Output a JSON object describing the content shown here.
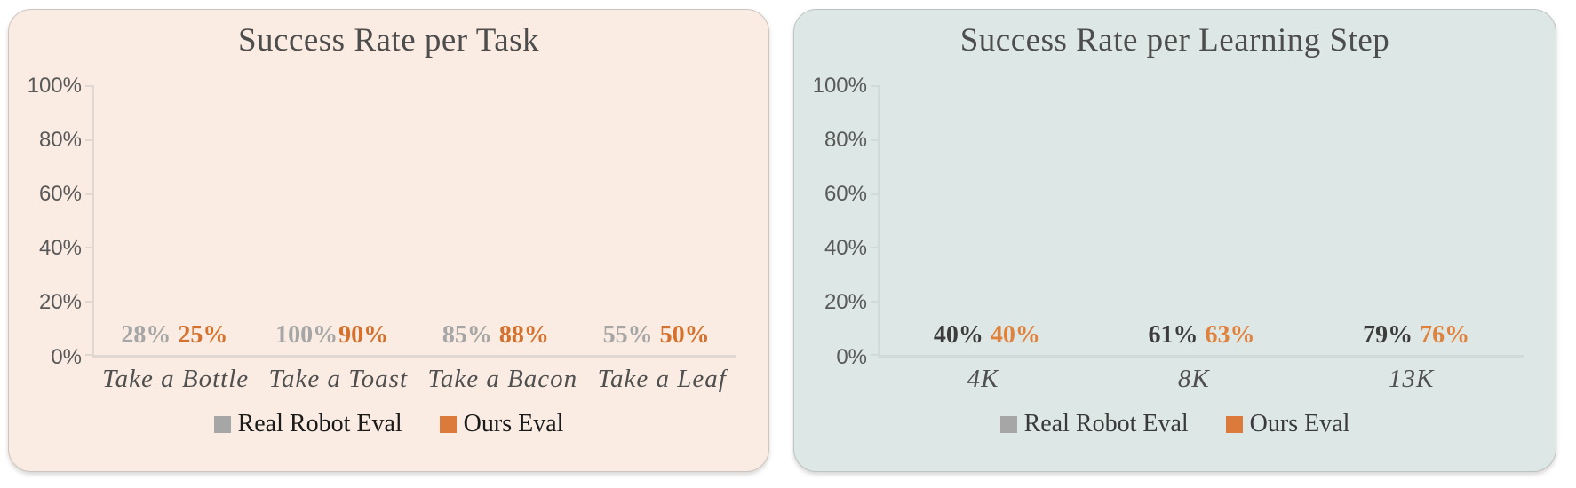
{
  "page": {
    "background": "#ffffff"
  },
  "chart_data": [
    {
      "type": "bar",
      "title": "Success Rate per Task",
      "categories": [
        "Take a Bottle",
        "Take a Toast",
        "Take a Bacon",
        "Take a Leaf"
      ],
      "series": [
        {
          "name": "Real Robot Eval",
          "color": "#a6a6a6",
          "label_color": "#a6a6a6",
          "values": [
            28,
            100,
            85,
            55
          ]
        },
        {
          "name": "Ours Eval",
          "color": "#dc7a3b",
          "label_color": "#d5712c",
          "values": [
            25,
            90,
            88,
            50
          ]
        }
      ],
      "value_labels": [
        [
          "28%",
          "100%",
          "85%",
          "55%"
        ],
        [
          "25%",
          "90%",
          "88%",
          "50%"
        ]
      ],
      "xlabel": "",
      "ylabel": "",
      "ylim": [
        0,
        100
      ],
      "ytick_step": 20,
      "ytick_labels": [
        "0%",
        "20%",
        "40%",
        "60%",
        "80%",
        "100%"
      ],
      "grid": false,
      "legend_position": "bottom",
      "value_label_suffix": "%",
      "background": "#faece2",
      "axis_color": "#e0d8d1",
      "legend_text_color": "#1a1a1a"
    },
    {
      "type": "bar",
      "title": "Success Rate per Learning Step",
      "categories": [
        "4K",
        "8K",
        "13K"
      ],
      "series": [
        {
          "name": "Real Robot Eval",
          "color": "#a6a6a6",
          "label_color": "#3c3c3c",
          "values": [
            40,
            61,
            79
          ]
        },
        {
          "name": "Ours Eval",
          "color": "#dc7a3b",
          "label_color": "#e0813c",
          "values": [
            40,
            63,
            76
          ]
        }
      ],
      "value_labels": [
        [
          "40%",
          "61%",
          "79%"
        ],
        [
          "40%",
          "63%",
          "76%"
        ]
      ],
      "xlabel": "",
      "ylabel": "",
      "ylim": [
        0,
        100
      ],
      "ytick_step": 20,
      "ytick_labels": [
        "0%",
        "20%",
        "40%",
        "60%",
        "80%",
        "100%"
      ],
      "grid": false,
      "legend_position": "bottom",
      "value_label_suffix": "%",
      "background": "#dde8e6",
      "axis_color": "#cfdbd9",
      "legend_text_color": "#3a3a3a"
    }
  ]
}
